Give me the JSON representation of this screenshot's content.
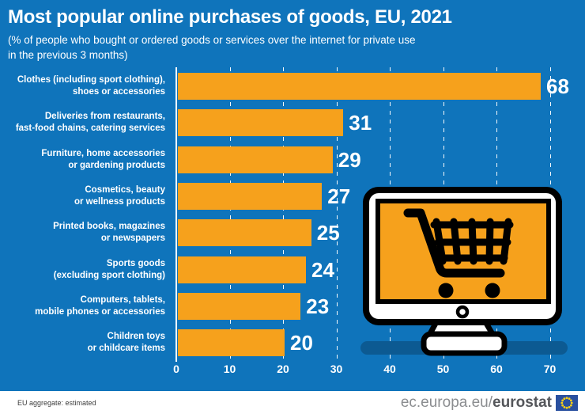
{
  "colors": {
    "background": "#0f74bb",
    "bar": "#f6a11c",
    "text": "#ffffff",
    "grid": "#ffffff",
    "monitor_shadow": "#0c5a92",
    "monitor_outline": "#000000",
    "footer_background": "#ffffff",
    "footer_note_text": "#3c3c3c",
    "footer_url_text": "#8b8d90",
    "footer_brand_text": "#54565a",
    "flag_blue": "#29509f",
    "flag_stars": "#fcd116"
  },
  "header": {
    "title": "Most popular online purchases of goods, EU, 2021",
    "subtitle_line1": "(% of people who bought or ordered goods or services over the internet for private use",
    "subtitle_line2": "in the previous 3 months)"
  },
  "chart_data": {
    "type": "bar",
    "orientation": "horizontal",
    "title": "Most popular online purchases of goods, EU, 2021",
    "unit": "% of people who bought or ordered goods or services over the internet for private use in the previous 3 months",
    "categories": [
      [
        "Clothes (including sport clothing),",
        "shoes or accessories"
      ],
      [
        "Deliveries from restaurants,",
        "fast-food chains, catering services"
      ],
      [
        "Furniture, home accessories",
        "or gardening products"
      ],
      [
        "Cosmetics, beauty",
        "or wellness products"
      ],
      [
        "Printed books, magazines",
        "or newspapers"
      ],
      [
        "Sports goods",
        "(excluding sport clothing)"
      ],
      [
        "Computers, tablets,",
        "mobile phones or accessories"
      ],
      [
        "Children toys",
        "or childcare items"
      ]
    ],
    "values": [
      68,
      31,
      29,
      27,
      25,
      24,
      23,
      20
    ],
    "xlim": [
      0,
      70
    ],
    "x_ticks": [
      0,
      10,
      20,
      30,
      40,
      50,
      60,
      70
    ],
    "grid": "vertical-dashed-white",
    "legend": "none",
    "bar_color": "#f6a11c",
    "value_labels": "outside-end-white-bold"
  },
  "illustration": {
    "name": "computer-monitor-with-shopping-cart",
    "icons": [
      "monitor-icon",
      "shopping-cart-icon"
    ],
    "screen_color": "#f6a11c"
  },
  "footer": {
    "note": "EU aggregate: estimated",
    "url_prefix": "ec.europa.eu/",
    "brand": "eurostat",
    "flag_icon": "eu-flag-icon"
  }
}
